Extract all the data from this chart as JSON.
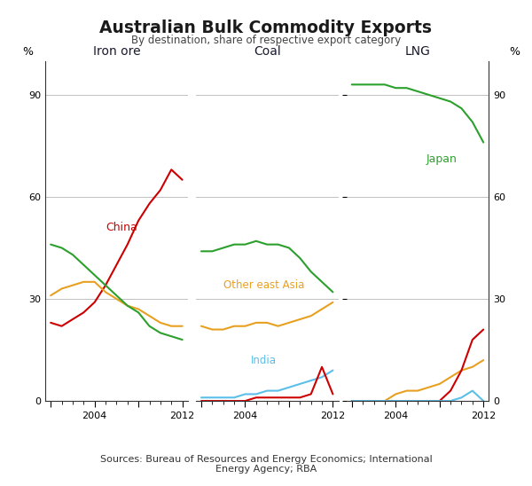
{
  "title": "Australian Bulk Commodity Exports",
  "subtitle": "By destination, share of respective export category",
  "source_text": "Sources: Bureau of Resources and Energy Economics; International\nEnergy Agency; RBA",
  "ylim": [
    0,
    100
  ],
  "yticks": [
    0,
    30,
    60,
    90
  ],
  "colors": {
    "red": "#cc0000",
    "orange": "#e8a020",
    "green": "#2ca02c",
    "blue": "#5bbfea"
  },
  "iron_ore": {
    "years": [
      2000,
      2001,
      2002,
      2003,
      2004,
      2005,
      2006,
      2007,
      2008,
      2009,
      2010,
      2011,
      2012
    ],
    "china": [
      23,
      22,
      24,
      26,
      29,
      34,
      40,
      46,
      53,
      58,
      62,
      68,
      65
    ],
    "other_east_asia": [
      31,
      33,
      34,
      35,
      35,
      32,
      30,
      28,
      27,
      25,
      23,
      22,
      22
    ],
    "green": [
      46,
      45,
      43,
      40,
      37,
      34,
      31,
      28,
      26,
      22,
      20,
      19,
      18
    ]
  },
  "coal": {
    "years": [
      2000,
      2001,
      2002,
      2003,
      2004,
      2005,
      2006,
      2007,
      2008,
      2009,
      2010,
      2011,
      2012
    ],
    "green": [
      44,
      44,
      45,
      46,
      46,
      47,
      46,
      46,
      45,
      42,
      38,
      35,
      32
    ],
    "orange": [
      22,
      21,
      21,
      22,
      22,
      23,
      23,
      22,
      23,
      24,
      25,
      27,
      29
    ],
    "blue": [
      1,
      1,
      1,
      1,
      2,
      2,
      3,
      3,
      4,
      5,
      6,
      7,
      9
    ],
    "red": [
      0,
      0,
      0,
      0,
      0,
      1,
      1,
      1,
      1,
      1,
      2,
      10,
      2
    ]
  },
  "lng": {
    "years": [
      2000,
      2001,
      2002,
      2003,
      2004,
      2005,
      2006,
      2007,
      2008,
      2009,
      2010,
      2011,
      2012
    ],
    "green": [
      93,
      93,
      93,
      93,
      92,
      92,
      91,
      90,
      89,
      88,
      86,
      82,
      76
    ],
    "orange": [
      0,
      0,
      0,
      0,
      2,
      3,
      3,
      4,
      5,
      7,
      9,
      10,
      12
    ],
    "red": [
      0,
      0,
      0,
      0,
      0,
      0,
      0,
      0,
      0,
      3,
      9,
      18,
      21
    ],
    "blue": [
      0,
      0,
      0,
      0,
      0,
      0,
      0,
      0,
      0,
      0,
      1,
      3,
      0
    ]
  },
  "background": "#ffffff",
  "grid_color": "#c0c0c0",
  "lw": 1.5,
  "panel_titles": [
    "Iron ore",
    "Coal",
    "LNG"
  ]
}
